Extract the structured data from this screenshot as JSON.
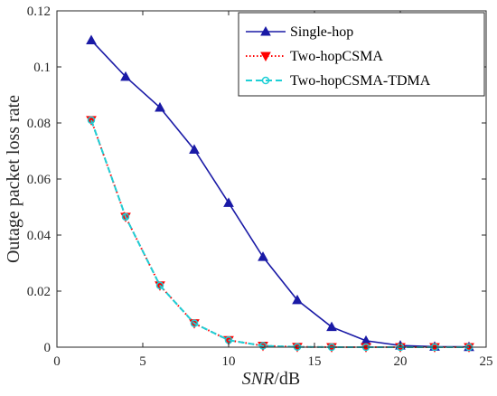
{
  "chart_data": {
    "type": "line",
    "title": "",
    "xlabel_italic": "SNR",
    "xlabel_rest": "/dB",
    "ylabel": "Outage packet loss rate",
    "xlim": [
      0,
      25
    ],
    "ylim": [
      0,
      0.12
    ],
    "xticks": [
      0,
      5,
      10,
      15,
      20,
      25
    ],
    "xtick_labels": [
      "0",
      "5",
      "10",
      "15",
      "20",
      "25"
    ],
    "yticks": [
      0,
      0.02,
      0.04,
      0.06,
      0.08,
      0.1,
      0.12
    ],
    "ytick_labels": [
      "0",
      "0.02",
      "0.04",
      "0.06",
      "0.08",
      "0.1",
      "0.12"
    ],
    "grid": false,
    "legend_position": "top-right",
    "x": [
      2,
      4,
      6,
      8,
      10,
      12,
      14,
      16,
      18,
      20,
      22,
      24
    ],
    "series": [
      {
        "name": "Single-hop",
        "color": "#1a1aa6",
        "line_style": "solid",
        "marker": "triangle-up",
        "values": [
          0.1095,
          0.0965,
          0.0855,
          0.0705,
          0.0515,
          0.0322,
          0.0168,
          0.0072,
          0.0023,
          0.0006,
          0.0002,
          0.0001
        ]
      },
      {
        "name": "Two-hopCSMA",
        "color": "#ff0000",
        "line_style": "dotted",
        "marker": "triangle-down",
        "values": [
          0.081,
          0.0465,
          0.022,
          0.0085,
          0.0025,
          0.0005,
          0.0001,
          0.0,
          0.0,
          0.0,
          0.0,
          0.0
        ]
      },
      {
        "name": "Two-hopCSMA-TDMA",
        "color": "#1ecfd6",
        "line_style": "dashed",
        "marker": "circle",
        "values": [
          0.081,
          0.0465,
          0.022,
          0.0085,
          0.0025,
          0.0005,
          0.0001,
          0.0,
          0.0,
          0.0,
          0.0,
          0.0
        ]
      }
    ]
  }
}
